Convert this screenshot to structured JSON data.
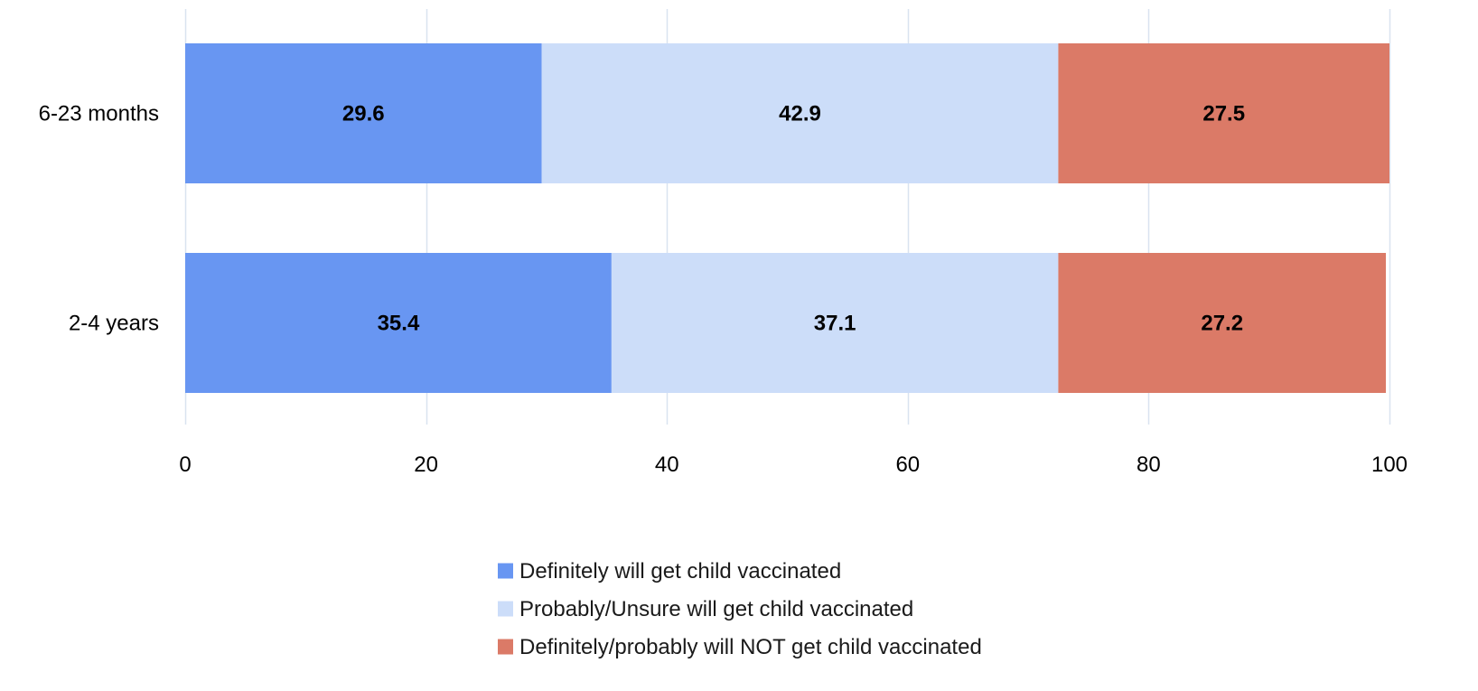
{
  "chart_data": {
    "type": "bar",
    "orientation": "horizontal",
    "stacked": true,
    "categories": [
      "6-23 months",
      "2-4 years"
    ],
    "series": [
      {
        "name": "Definitely will get child vaccinated",
        "values": [
          29.6,
          35.4
        ],
        "color": "#6896F2"
      },
      {
        "name": "Probably/Unsure will get child vaccinated",
        "values": [
          42.9,
          37.1
        ],
        "color": "#CCDDF9"
      },
      {
        "name": "Definitely/probably will NOT get child vaccinated",
        "values": [
          27.5,
          27.2
        ],
        "color": "#DB7A67"
      }
    ],
    "xlim": [
      0,
      100
    ],
    "xticks": [
      0,
      20,
      40,
      60,
      80,
      100
    ],
    "grid": true,
    "gridColor": "#D9E3F0",
    "legend_position": "bottom"
  }
}
